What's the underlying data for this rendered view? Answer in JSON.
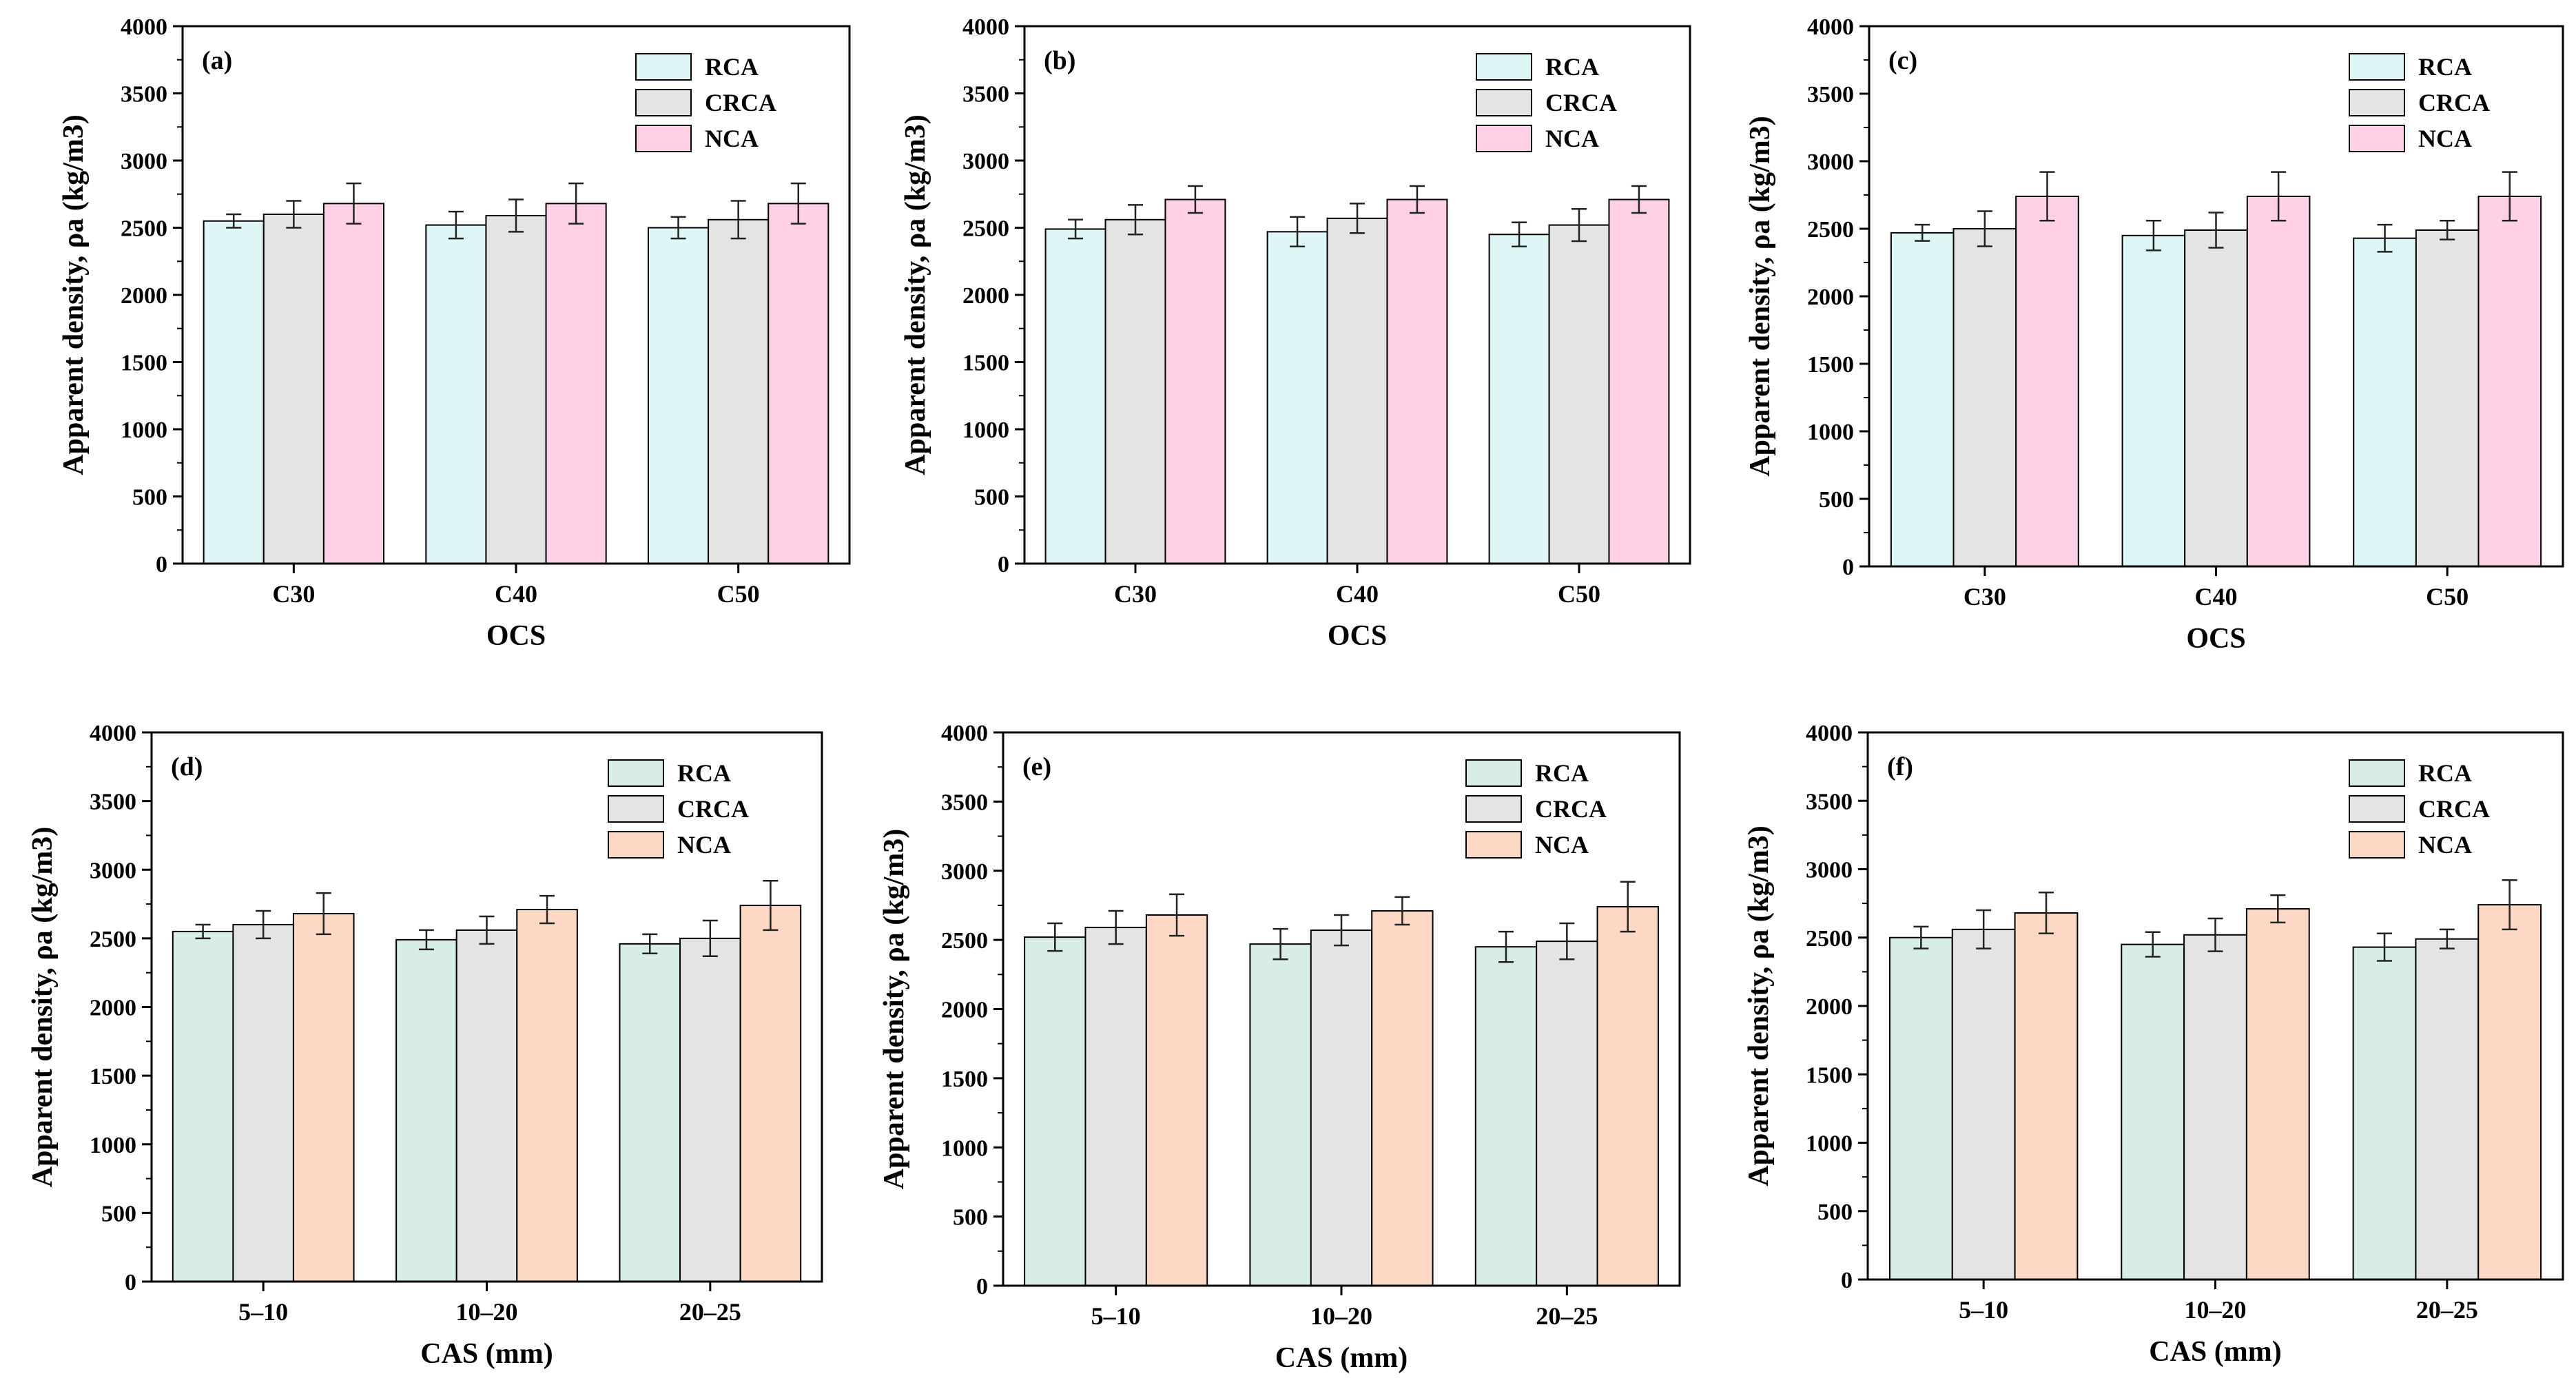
{
  "figure": {
    "panels": [
      {
        "id": "a",
        "label": "(a)",
        "xlabel": "OCS",
        "ylabel": "Apparent density, ρa (kg/m3)"
      },
      {
        "id": "b",
        "label": "(b)",
        "xlabel": "OCS",
        "ylabel": "Apparent density, ρa (kg/m3)"
      },
      {
        "id": "c",
        "label": "(c)",
        "xlabel": "OCS",
        "ylabel": "Apparent density, ρa (kg/m3)"
      },
      {
        "id": "d",
        "label": "(d)",
        "xlabel": "CAS (mm)",
        "ylabel": "Apparent density, ρa (kg/m3)"
      },
      {
        "id": "e",
        "label": "(e)",
        "xlabel": "CAS (mm)",
        "ylabel": "Apparent density, ρa (kg/m3)"
      },
      {
        "id": "f",
        "label": "(f)",
        "xlabel": "CAS (mm)",
        "ylabel": "Apparent density, ρa (kg/m3)"
      }
    ]
  },
  "colors": {
    "top_row": {
      "RCA": "#dff6f6",
      "CRCA": "#e4e4e4",
      "NCA": "#ffd0e6"
    },
    "bottom_row": {
      "RCA": "#d8ede3",
      "CRCA": "#e4e4e4",
      "NCA": "#fdd8c4"
    }
  },
  "chart_data": [
    {
      "type": "bar",
      "panel": "(a)",
      "title": "",
      "xlabel": "OCS",
      "ylabel": "Apparent density, ρa (kg/m3)",
      "ylim": [
        0,
        4000
      ],
      "yticks": [
        "0",
        "500",
        "1000",
        "1500",
        "2000",
        "2500",
        "3000",
        "3500",
        "4000"
      ],
      "categories": [
        "C30",
        "C40",
        "C50"
      ],
      "legend_position": "top-right",
      "series": [
        {
          "name": "RCA",
          "values": [
            2550,
            2520,
            2500
          ],
          "errors": [
            50,
            100,
            80
          ]
        },
        {
          "name": "CRCA",
          "values": [
            2600,
            2590,
            2560
          ],
          "errors": [
            100,
            120,
            140
          ]
        },
        {
          "name": "NCA",
          "values": [
            2680,
            2680,
            2680
          ],
          "errors": [
            150,
            150,
            150
          ]
        }
      ]
    },
    {
      "type": "bar",
      "panel": "(b)",
      "title": "",
      "xlabel": "OCS",
      "ylabel": "Apparent density, ρa (kg/m3)",
      "ylim": [
        0,
        4000
      ],
      "yticks": [
        "0",
        "500",
        "1000",
        "1500",
        "2000",
        "2500",
        "3000",
        "3500",
        "4000"
      ],
      "categories": [
        "C30",
        "C40",
        "C50"
      ],
      "legend_position": "top-right",
      "series": [
        {
          "name": "RCA",
          "values": [
            2490,
            2470,
            2450
          ],
          "errors": [
            70,
            110,
            90
          ]
        },
        {
          "name": "CRCA",
          "values": [
            2560,
            2570,
            2520
          ],
          "errors": [
            110,
            110,
            120
          ]
        },
        {
          "name": "NCA",
          "values": [
            2710,
            2710,
            2710
          ],
          "errors": [
            100,
            100,
            100
          ]
        }
      ]
    },
    {
      "type": "bar",
      "panel": "(c)",
      "title": "",
      "xlabel": "OCS",
      "ylabel": "Apparent density, ρa (kg/m3)",
      "ylim": [
        0,
        4000
      ],
      "yticks": [
        "0",
        "500",
        "1000",
        "1500",
        "2000",
        "2500",
        "3000",
        "3500",
        "4000"
      ],
      "categories": [
        "C30",
        "C40",
        "C50"
      ],
      "legend_position": "top-right",
      "series": [
        {
          "name": "RCA",
          "values": [
            2470,
            2450,
            2430
          ],
          "errors": [
            60,
            110,
            100
          ]
        },
        {
          "name": "CRCA",
          "values": [
            2500,
            2490,
            2490
          ],
          "errors": [
            130,
            130,
            70
          ]
        },
        {
          "name": "NCA",
          "values": [
            2740,
            2740,
            2740
          ],
          "errors": [
            180,
            180,
            180
          ]
        }
      ]
    },
    {
      "type": "bar",
      "panel": "(d)",
      "title": "",
      "xlabel": "CAS (mm)",
      "ylabel": "Apparent density, ρa (kg/m3)",
      "ylim": [
        0,
        4000
      ],
      "yticks": [
        "0",
        "500",
        "1000",
        "1500",
        "2000",
        "2500",
        "3000",
        "3500",
        "4000"
      ],
      "categories": [
        "5–10",
        "10–20",
        "20–25"
      ],
      "legend_position": "top-right",
      "series": [
        {
          "name": "RCA",
          "values": [
            2550,
            2490,
            2460
          ],
          "errors": [
            50,
            70,
            70
          ]
        },
        {
          "name": "CRCA",
          "values": [
            2600,
            2560,
            2500
          ],
          "errors": [
            100,
            100,
            130
          ]
        },
        {
          "name": "NCA",
          "values": [
            2680,
            2710,
            2740
          ],
          "errors": [
            150,
            100,
            180
          ]
        }
      ]
    },
    {
      "type": "bar",
      "panel": "(e)",
      "title": "",
      "xlabel": "CAS (mm)",
      "ylabel": "Apparent density, ρa (kg/m3)",
      "ylim": [
        0,
        4000
      ],
      "yticks": [
        "0",
        "500",
        "1000",
        "1500",
        "2000",
        "2500",
        "3000",
        "3500",
        "4000"
      ],
      "categories": [
        "5–10",
        "10–20",
        "20–25"
      ],
      "legend_position": "top-right",
      "series": [
        {
          "name": "RCA",
          "values": [
            2520,
            2470,
            2450
          ],
          "errors": [
            100,
            110,
            110
          ]
        },
        {
          "name": "CRCA",
          "values": [
            2590,
            2570,
            2490
          ],
          "errors": [
            120,
            110,
            130
          ]
        },
        {
          "name": "NCA",
          "values": [
            2680,
            2710,
            2740
          ],
          "errors": [
            150,
            100,
            180
          ]
        }
      ]
    },
    {
      "type": "bar",
      "panel": "(f)",
      "title": "",
      "xlabel": "CAS (mm)",
      "ylabel": "Apparent density, ρa (kg/m3)",
      "ylim": [
        0,
        4000
      ],
      "yticks": [
        "0",
        "500",
        "1000",
        "1500",
        "2000",
        "2500",
        "3000",
        "3500",
        "4000"
      ],
      "categories": [
        "5–10",
        "10–20",
        "20–25"
      ],
      "legend_position": "top-right",
      "series": [
        {
          "name": "RCA",
          "values": [
            2500,
            2450,
            2430
          ],
          "errors": [
            80,
            90,
            100
          ]
        },
        {
          "name": "CRCA",
          "values": [
            2560,
            2520,
            2490
          ],
          "errors": [
            140,
            120,
            70
          ]
        },
        {
          "name": "NCA",
          "values": [
            2680,
            2710,
            2740
          ],
          "errors": [
            150,
            100,
            180
          ]
        }
      ]
    }
  ]
}
